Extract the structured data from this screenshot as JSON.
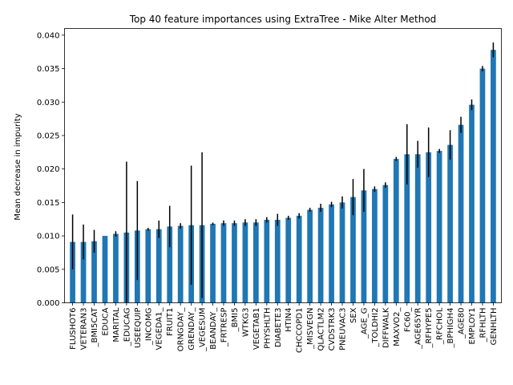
{
  "chart_data": {
    "type": "bar",
    "title": "Top 40 feature importances using ExtraTree - Mike Alter Method",
    "xlabel": "",
    "ylabel": "Mean decrease in impurity",
    "ylim": [
      0,
      0.041
    ],
    "yticks": [
      "0.000",
      "0.005",
      "0.010",
      "0.015",
      "0.020",
      "0.025",
      "0.030",
      "0.035",
      "0.040"
    ],
    "ytick_values": [
      0,
      0.005,
      0.01,
      0.015,
      0.02,
      0.025,
      0.03,
      0.035,
      0.04
    ],
    "bar_color": "#1f77b4",
    "error_color": "#000000",
    "grid": false,
    "categories": [
      "FLUSHOT6",
      "VETERAN3",
      "_BMI5CAT",
      "EDUCA",
      "MARITAL",
      "_EDUCAG",
      "USEEQUIP",
      "_INCOMG",
      "VEGEDA1_",
      "FRUIT1",
      "ORNGDAY_",
      "GRENDAY_",
      "_VEGESUM",
      "BEANDAY_",
      "_FRTRESP",
      "_BMI5",
      "WTKG3",
      "VEGETAB1",
      "PHYSHLTH",
      "DIABETE3",
      "HTIN4",
      "CHCCOPD1",
      "_MISVEGN",
      "QLACTLM2",
      "CVDSTRK3",
      "PNEUVAC3",
      "SEX",
      "_AGE_G",
      "_TOLDHI2",
      "DIFFWALK",
      "MAXVO2_",
      "FC60_",
      "_AGE65YR",
      "_RFHYPE5",
      "_RFCHOL",
      "_BPHIGH4",
      "_AGE80",
      "EMPLOY1",
      "_RFHLTH",
      "GENHLTH"
    ],
    "values": [
      0.0091,
      0.0091,
      0.0092,
      0.01,
      0.0103,
      0.0105,
      0.0108,
      0.011,
      0.011,
      0.0114,
      0.0115,
      0.0116,
      0.0116,
      0.0118,
      0.0119,
      0.0119,
      0.012,
      0.012,
      0.0124,
      0.0124,
      0.0127,
      0.013,
      0.0139,
      0.0142,
      0.0147,
      0.015,
      0.0158,
      0.0168,
      0.017,
      0.0176,
      0.0215,
      0.0222,
      0.0222,
      0.0225,
      0.0227,
      0.0236,
      0.0266,
      0.0296,
      0.035,
      0.0378
    ],
    "errors": [
      0.0041,
      0.0026,
      0.0017,
      0.0,
      0.0004,
      0.0106,
      0.0074,
      0.0002,
      0.0013,
      0.0031,
      0.0004,
      0.0089,
      0.0109,
      0.0002,
      0.0004,
      0.0004,
      0.0005,
      0.0005,
      0.0004,
      0.0009,
      0.0003,
      0.0004,
      0.0003,
      0.0006,
      0.0004,
      0.0009,
      0.0027,
      0.0032,
      0.0004,
      0.0004,
      0.0003,
      0.0045,
      0.002,
      0.0037,
      0.0003,
      0.0022,
      0.0012,
      0.0008,
      0.0004,
      0.0011
    ]
  }
}
